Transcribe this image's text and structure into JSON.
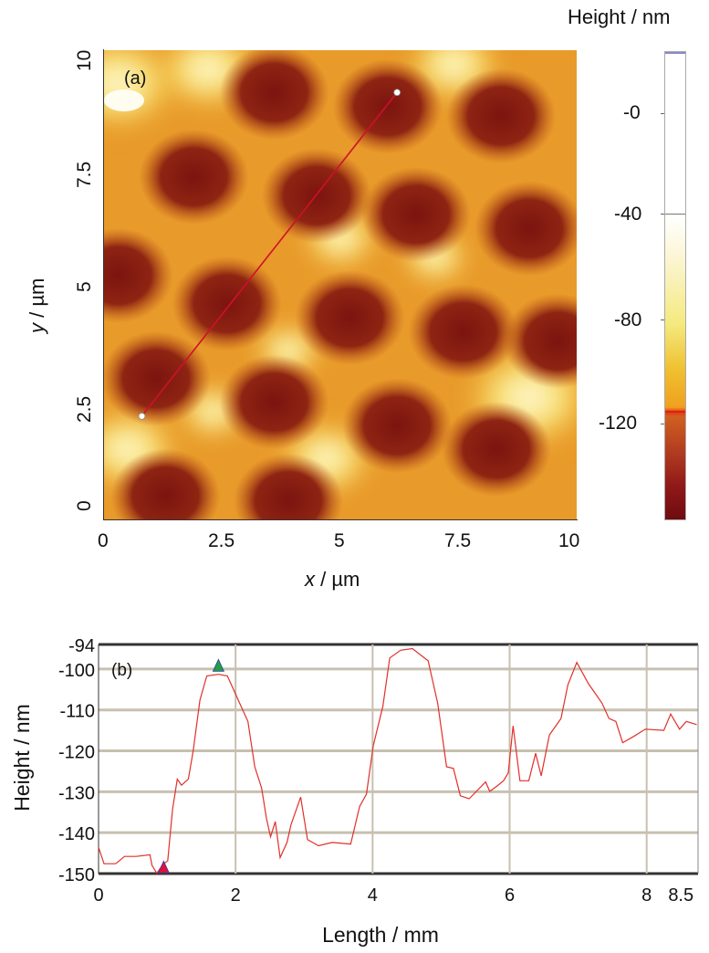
{
  "panel_a": {
    "label": "(a)",
    "xlabel_var": "x",
    "xlabel_unit": " / µm",
    "ylabel_var": "y",
    "ylabel_unit": " / µm",
    "x_ticks": [
      "0",
      "2.5",
      "5",
      "7.5",
      "10"
    ],
    "y_ticks": [
      "0",
      "2.5",
      "5",
      "7.5",
      "10"
    ],
    "colorbar": {
      "title": "Height / nm",
      "ticks": [
        "-0",
        "-40",
        "-80",
        "-120"
      ]
    },
    "line_color": "#d0102a"
  },
  "chart_data": [
    {
      "type": "heatmap",
      "title": "(a)",
      "xlabel": "x / µm",
      "ylabel": "y / µm",
      "xlim": [
        0,
        10
      ],
      "ylim": [
        0,
        10
      ],
      "colorbar_label": "Height / nm",
      "colorbar_ticks": [
        0,
        -40,
        -80,
        -120
      ],
      "profile_line": {
        "start": [
          0.8,
          2.2
        ],
        "end": [
          6.2,
          9.1
        ]
      }
    },
    {
      "type": "line",
      "title": "(b)",
      "xlabel": "Length / mm",
      "ylabel": "Height / nm",
      "xlim": [
        0,
        8.75
      ],
      "ylim": [
        -150,
        -94
      ],
      "x_ticks": [
        "0",
        "2",
        "4",
        "6",
        "8",
        "8.5"
      ],
      "x_tick_values": [
        0,
        2,
        4,
        6,
        8,
        8.5
      ],
      "y_ticks": [
        "-94",
        "-100",
        "-110",
        "-120",
        "-130",
        "-140",
        "-150"
      ],
      "y_tick_values": [
        -94,
        -100,
        -110,
        -120,
        -130,
        -140,
        -150
      ],
      "grid": true,
      "series": [
        {
          "name": "profile",
          "color": "#e0302a",
          "x": [
            0,
            0.08,
            0.25,
            0.38,
            0.55,
            0.75,
            0.78,
            0.85,
            0.95,
            1.01,
            1.08,
            1.15,
            1.21,
            1.31,
            1.38,
            1.48,
            1.58,
            1.75,
            1.88,
            1.98,
            2.08,
            2.18,
            2.28,
            2.38,
            2.45,
            2.51,
            2.58,
            2.65,
            2.75,
            2.81,
            2.95,
            3.05,
            3.21,
            3.41,
            3.68,
            3.81,
            3.91,
            4.01,
            4.15,
            4.25,
            4.41,
            4.58,
            4.81,
            4.95,
            5.08,
            5.18,
            5.28,
            5.41,
            5.65,
            5.71,
            5.81,
            5.91,
            5.98,
            6.05,
            6.15,
            6.28,
            6.38,
            6.46,
            6.58,
            6.75,
            6.85,
            6.98,
            7.15,
            7.35,
            7.45,
            7.55,
            7.65,
            7.81,
            7.98,
            8.25,
            8.35,
            8.48,
            8.58,
            8.73
          ],
          "y": [
            -143.6,
            -147.6,
            -147.6,
            -145.8,
            -145.8,
            -145.4,
            -148,
            -149.9,
            -147.6,
            -146.9,
            -134.3,
            -126.9,
            -128.4,
            -126.9,
            -120.2,
            -107.6,
            -101.7,
            -101.3,
            -101.7,
            -105.4,
            -109.1,
            -112.8,
            -123.9,
            -129.1,
            -136.5,
            -141,
            -137.3,
            -146.1,
            -142.4,
            -138,
            -131.3,
            -141.7,
            -143.2,
            -142.4,
            -142.8,
            -133.6,
            -130.6,
            -118.7,
            -109.1,
            -97.3,
            -95.4,
            -95,
            -98,
            -108.4,
            -123.9,
            -124.3,
            -131,
            -131.7,
            -127.6,
            -129.9,
            -128.7,
            -127.3,
            -125.4,
            -113.9,
            -127.3,
            -127.3,
            -120.6,
            -126.1,
            -116.1,
            -112.1,
            -103.9,
            -98.4,
            -103.6,
            -108.4,
            -112.1,
            -112.8,
            -118,
            -116.5,
            -114.7,
            -115,
            -111,
            -114.7,
            -112.8,
            -113.6
          ]
        }
      ],
      "markers": [
        {
          "name": "min-marker",
          "x": 0.95,
          "y": -148.5,
          "color": "#e0103a"
        },
        {
          "name": "max-marker",
          "x": 1.75,
          "y": -99.2,
          "color": "#20a040"
        }
      ]
    }
  ]
}
